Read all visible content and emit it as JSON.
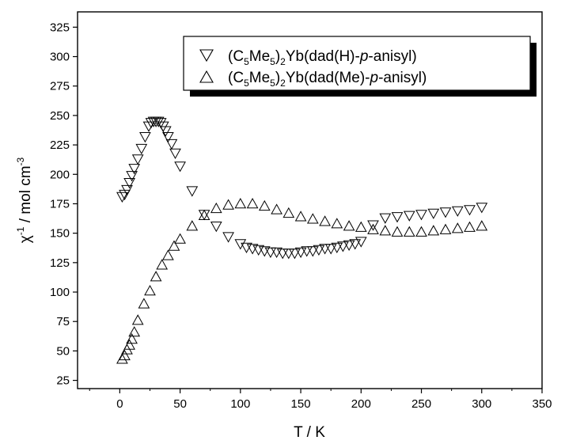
{
  "chart_data": {
    "type": "scatter",
    "xlabel": "T / K",
    "ylabel": "χ-1 / mol cm-3",
    "ylabel_parts": {
      "base": "χ",
      "base_exp": "-1",
      "mid": " / mol cm",
      "unit_exp": "-3"
    },
    "xlim": [
      -35,
      350
    ],
    "ylim": [
      18,
      338
    ],
    "xticks": [
      0,
      50,
      100,
      150,
      200,
      250,
      300,
      350
    ],
    "yticks": [
      25,
      50,
      75,
      100,
      125,
      150,
      175,
      200,
      225,
      250,
      275,
      300,
      325
    ],
    "grid": false,
    "legend_position": "top-right",
    "series": [
      {
        "name": "(C5Me5)2Yb(dad(H)-p-anisyl)",
        "legend_parts": {
          "p1": "(C",
          "s1": "5",
          "p2": "Me",
          "s2": "5",
          "p3": ")",
          "s3": "2",
          "p4": "Yb(dad(H)-",
          "italic": "p",
          "p5": "-anisyl)"
        },
        "marker": "triangle-down",
        "color": "#000000",
        "x": [
          2,
          4,
          6,
          8,
          10,
          12,
          15,
          18,
          21,
          24,
          26,
          28,
          30,
          32,
          34,
          36,
          38,
          40,
          43,
          46,
          50,
          60,
          70,
          80,
          90,
          100,
          105,
          110,
          115,
          120,
          125,
          130,
          135,
          140,
          145,
          150,
          155,
          160,
          165,
          170,
          175,
          180,
          185,
          190,
          195,
          200,
          210,
          220,
          230,
          240,
          250,
          260,
          270,
          280,
          290,
          300
        ],
        "y": [
          181,
          183,
          187,
          193,
          199,
          205,
          213,
          222,
          232,
          241,
          244,
          245,
          245,
          245,
          244,
          241,
          237,
          232,
          226,
          218,
          207,
          186,
          166,
          156,
          147,
          141,
          138,
          137,
          136,
          135,
          134,
          134,
          133,
          133,
          133,
          134,
          135,
          135,
          136,
          137,
          137,
          138,
          139,
          140,
          141,
          143,
          157,
          163,
          164,
          165,
          166,
          167,
          168,
          169,
          170,
          172
        ]
      },
      {
        "name": "(C5Me5)2Yb(dad(Me)-p-anisyl)",
        "legend_parts": {
          "p1": "(C",
          "s1": "5",
          "p2": "Me",
          "s2": "5",
          "p3": ")",
          "s3": "2",
          "p4": "Yb(dad(Me)-",
          "italic": "p",
          "p5": "-anisyl)"
        },
        "marker": "triangle-up",
        "color": "#000000",
        "x": [
          2,
          4,
          6,
          8,
          10,
          12,
          15,
          20,
          25,
          30,
          35,
          40,
          45,
          50,
          60,
          70,
          80,
          90,
          100,
          110,
          120,
          130,
          140,
          150,
          160,
          170,
          180,
          190,
          200,
          210,
          220,
          230,
          240,
          250,
          260,
          270,
          280,
          290,
          300
        ],
        "y": [
          43,
          46,
          51,
          55,
          60,
          66,
          76,
          90,
          101,
          113,
          123,
          131,
          139,
          145,
          156,
          165,
          171,
          174,
          175,
          175,
          173,
          170,
          167,
          164,
          162,
          160,
          158,
          156,
          155,
          153,
          152,
          151,
          151,
          151,
          152,
          153,
          154,
          155,
          156
        ]
      }
    ]
  }
}
